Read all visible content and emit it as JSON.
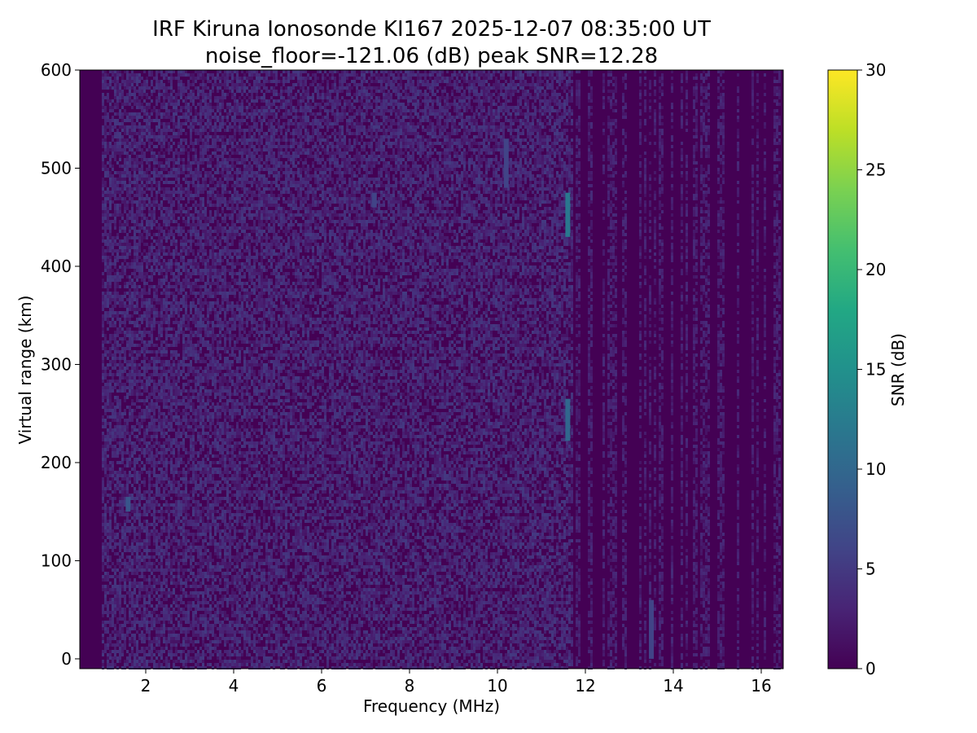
{
  "chart_data": {
    "type": "heatmap",
    "title_line1": "IRF Kiruna Ionosonde KI167 2025-12-07 08:35:00  UT",
    "title_line2": "noise_floor=-121.06 (dB) peak SNR=12.28",
    "xlabel": "Frequency (MHz)",
    "ylabel": "Virtual range (km)",
    "xlim": [
      0.5,
      16.5
    ],
    "ylim": [
      -10,
      600
    ],
    "x_ticks": [
      "2",
      "4",
      "6",
      "8",
      "10",
      "12",
      "14",
      "16"
    ],
    "y_ticks": [
      "0",
      "100",
      "200",
      "300",
      "400",
      "500",
      "600"
    ],
    "colorbar": {
      "label": "SNR (dB)",
      "range": [
        0,
        30
      ],
      "ticks": [
        "0",
        "5",
        "10",
        "15",
        "20",
        "25",
        "30"
      ],
      "colormap": "viridis"
    },
    "noise_floor_db": -121.06,
    "peak_snr_db": 12.28,
    "features": [
      {
        "freq_mhz": 11.6,
        "range_km_from": 430,
        "range_km_to": 475,
        "snr_db": 12
      },
      {
        "freq_mhz": 11.6,
        "range_km_from": 222,
        "range_km_to": 265,
        "snr_db": 10
      },
      {
        "freq_mhz": 1.6,
        "range_km_from": 150,
        "range_km_to": 165,
        "snr_db": 8
      },
      {
        "freq_mhz": 10.2,
        "range_km_from": 480,
        "range_km_to": 530,
        "snr_db": 6
      },
      {
        "freq_mhz": 7.2,
        "range_km_from": 460,
        "range_km_to": 475,
        "snr_db": 6
      },
      {
        "freq_mhz": 13.5,
        "range_km_from": 0,
        "range_km_to": 60,
        "snr_db": 6
      }
    ],
    "colors": {
      "background_low": "#440154",
      "mid": "#21918c",
      "high": "#fde725"
    }
  }
}
